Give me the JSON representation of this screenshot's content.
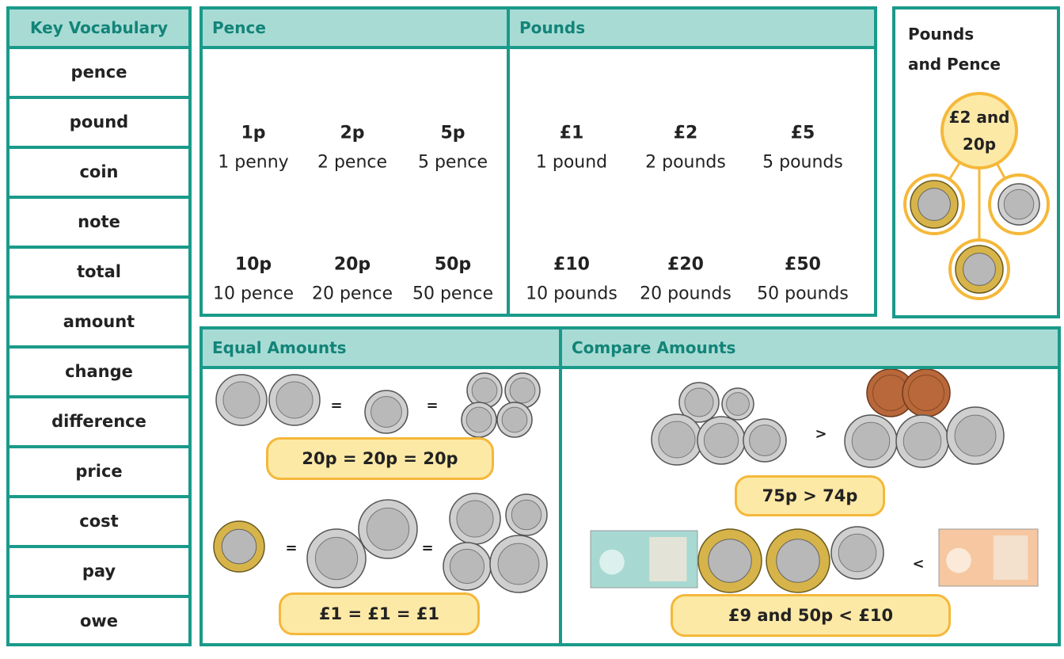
{
  "vocabulary": {
    "title": "Key Vocabulary",
    "words": [
      "pence",
      "pound",
      "coin",
      "note",
      "total",
      "amount",
      "change",
      "difference",
      "price",
      "cost",
      "pay",
      "owe"
    ]
  },
  "pence": {
    "title": "Pence",
    "items": [
      {
        "value": "1p",
        "label": "1 penny"
      },
      {
        "value": "2p",
        "label": "2 pence"
      },
      {
        "value": "5p",
        "label": "5 pence"
      },
      {
        "value": "10p",
        "label": "10 pence"
      },
      {
        "value": "20p",
        "label": "20 pence"
      },
      {
        "value": "50p",
        "label": "50 pence"
      }
    ]
  },
  "pounds": {
    "title": "Pounds",
    "items": [
      {
        "value": "£1",
        "label": "1 pound"
      },
      {
        "value": "£2",
        "label": "2 pounds"
      },
      {
        "value": "£5",
        "label": "5 pounds"
      },
      {
        "value": "£10",
        "label": "10 pounds"
      },
      {
        "value": "£20",
        "label": "20 pounds"
      },
      {
        "value": "£50",
        "label": "50 pounds"
      }
    ]
  },
  "pounds_and_pence": {
    "title": "Pounds and Pence",
    "center": "£2 and 20p"
  },
  "equal_amounts": {
    "title": "Equal Amounts",
    "signs": [
      "=",
      "=",
      "=",
      "="
    ],
    "statements": [
      "20p = 20p = 20p",
      "£1 = £1 = £1"
    ]
  },
  "compare_amounts": {
    "title": "Compare Amounts",
    "signs": [
      ">",
      "<"
    ],
    "statements": [
      "75p > 74p",
      "£9 and 50p < £10"
    ]
  }
}
